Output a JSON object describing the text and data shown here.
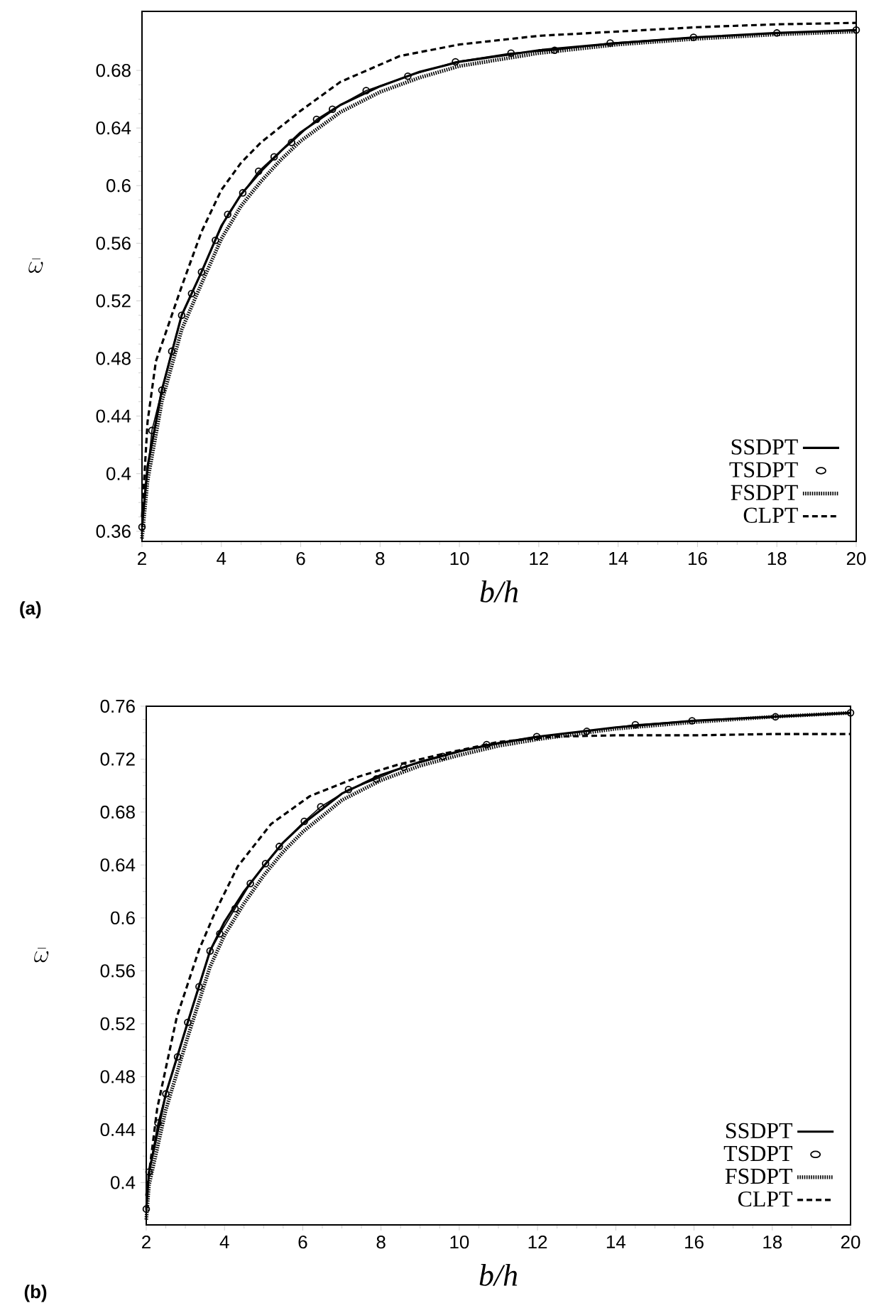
{
  "chart_data": [
    {
      "type": "line",
      "xlabel": "b/h",
      "ylabel": "\\bar{\\omega}",
      "annotations": [
        "(a)"
      ],
      "xlim": [
        2,
        20
      ],
      "ylim": [
        0.353,
        0.721
      ],
      "xticks": [
        2,
        4,
        6,
        8,
        10,
        12,
        14,
        16,
        18,
        20
      ],
      "yticks": [
        0.36,
        0.4,
        0.44,
        0.48,
        0.52,
        0.56,
        0.6,
        0.64,
        0.68
      ],
      "legend": "bottom right",
      "series": [
        {
          "name": "SSDPT",
          "color": "#000000",
          "line_style": "solid",
          "marker": "none",
          "x": [
            2,
            2.14,
            2.5,
            3,
            3.5,
            4,
            4.5,
            5,
            5.5,
            6,
            7,
            8,
            9,
            10,
            12,
            14,
            16,
            18,
            20
          ],
          "values": [
            0.363,
            0.405,
            0.458,
            0.51,
            0.54,
            0.572,
            0.594,
            0.61,
            0.624,
            0.637,
            0.656,
            0.669,
            0.679,
            0.686,
            0.694,
            0.699,
            0.703,
            0.706,
            0.708
          ]
        },
        {
          "name": "TSDPT",
          "color": "#000000",
          "line_style": "solid",
          "marker": "circle",
          "x": [
            2,
            2.25,
            2.5,
            2.75,
            3,
            3.25,
            3.5,
            3.85,
            4.16,
            4.54,
            4.94,
            5.33,
            5.77,
            6.4,
            6.8,
            7.65,
            8.7,
            9.9,
            11.3,
            12.4,
            13.8,
            15.9,
            18,
            20
          ],
          "values": [
            0.363,
            0.43,
            0.458,
            0.485,
            0.51,
            0.525,
            0.54,
            0.562,
            0.58,
            0.595,
            0.61,
            0.62,
            0.63,
            0.646,
            0.653,
            0.666,
            0.676,
            0.686,
            0.692,
            0.694,
            0.699,
            0.703,
            0.706,
            0.708
          ]
        },
        {
          "name": "FSDPT",
          "color": "#000000",
          "line_style": "dotted",
          "marker": "none",
          "x": [
            2,
            2.14,
            2.5,
            3,
            3.5,
            4,
            4.5,
            5,
            5.5,
            6,
            7,
            8,
            9,
            10,
            12,
            14,
            16,
            18,
            20
          ],
          "values": [
            0.355,
            0.395,
            0.45,
            0.5,
            0.532,
            0.563,
            0.586,
            0.603,
            0.618,
            0.631,
            0.651,
            0.665,
            0.675,
            0.683,
            0.692,
            0.698,
            0.702,
            0.705,
            0.707
          ]
        },
        {
          "name": "CLPT",
          "color": "#000000",
          "line_style": "dashed",
          "marker": "none",
          "x": [
            2,
            2.14,
            2.35,
            3,
            3.5,
            4,
            4.5,
            5,
            6,
            7,
            8.5,
            10,
            12,
            14,
            16,
            18,
            20
          ],
          "values": [
            0.37,
            0.436,
            0.478,
            0.53,
            0.568,
            0.597,
            0.616,
            0.63,
            0.652,
            0.672,
            0.69,
            0.698,
            0.704,
            0.707,
            0.71,
            0.712,
            0.713
          ]
        }
      ]
    },
    {
      "type": "line",
      "xlabel": "b/h",
      "ylabel": "\\bar{\\omega}",
      "annotations": [
        "(b)"
      ],
      "xlim": [
        2,
        20
      ],
      "ylim": [
        0.368,
        0.76
      ],
      "xticks": [
        2,
        4,
        6,
        8,
        10,
        12,
        14,
        16,
        18,
        20
      ],
      "yticks": [
        0.4,
        0.44,
        0.48,
        0.52,
        0.56,
        0.6,
        0.64,
        0.68,
        0.72,
        0.76
      ],
      "legend": "bottom right",
      "series": [
        {
          "name": "SSDPT",
          "color": "#000000",
          "line_style": "solid",
          "marker": "none",
          "x": [
            2,
            2.07,
            2.5,
            3.06,
            3.63,
            4,
            4.5,
            5,
            5.5,
            6,
            7,
            8,
            9,
            10,
            11,
            12,
            14,
            16,
            18,
            20
          ],
          "values": [
            0.38,
            0.408,
            0.467,
            0.521,
            0.575,
            0.597,
            0.62,
            0.639,
            0.657,
            0.671,
            0.694,
            0.708,
            0.718,
            0.726,
            0.732,
            0.737,
            0.744,
            0.749,
            0.752,
            0.755
          ]
        },
        {
          "name": "TSDPT",
          "color": "#000000",
          "line_style": "solid",
          "marker": "circle",
          "x": [
            2,
            2.07,
            2.3,
            2.5,
            2.8,
            3.06,
            3.35,
            3.63,
            3.88,
            4.27,
            4.66,
            5.05,
            5.4,
            6.04,
            6.46,
            7.17,
            7.88,
            8.58,
            9.58,
            10.7,
            11.98,
            13.26,
            14.5,
            15.95,
            18.08,
            20
          ],
          "values": [
            0.38,
            0.408,
            0.445,
            0.467,
            0.495,
            0.521,
            0.548,
            0.575,
            0.588,
            0.607,
            0.626,
            0.641,
            0.654,
            0.673,
            0.684,
            0.697,
            0.705,
            0.714,
            0.722,
            0.731,
            0.737,
            0.741,
            0.746,
            0.749,
            0.752,
            0.755
          ]
        },
        {
          "name": "FSDPT",
          "color": "#000000",
          "line_style": "dotted",
          "marker": "none",
          "x": [
            2,
            2.07,
            2.5,
            3.06,
            3.63,
            4,
            4.5,
            5,
            5.5,
            6,
            7,
            8,
            9,
            10,
            11,
            12,
            14,
            16,
            18,
            20
          ],
          "values": [
            0.372,
            0.398,
            0.455,
            0.51,
            0.563,
            0.587,
            0.611,
            0.632,
            0.65,
            0.665,
            0.689,
            0.704,
            0.715,
            0.723,
            0.73,
            0.735,
            0.743,
            0.748,
            0.752,
            0.755
          ]
        },
        {
          "name": "CLPT",
          "color": "#000000",
          "line_style": "dashed",
          "marker": "none",
          "x": [
            2,
            2.28,
            2.78,
            3.35,
            3.77,
            4.34,
            5.19,
            6.18,
            7.45,
            8.45,
            9.58,
            11,
            12.4,
            14,
            16,
            18,
            20
          ],
          "values": [
            0.39,
            0.456,
            0.525,
            0.576,
            0.605,
            0.639,
            0.671,
            0.692,
            0.707,
            0.716,
            0.724,
            0.733,
            0.737,
            0.738,
            0.738,
            0.739,
            0.739
          ]
        }
      ]
    }
  ]
}
